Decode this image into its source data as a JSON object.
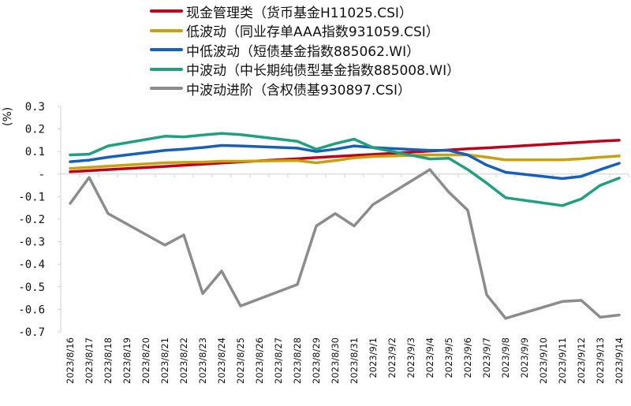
{
  "chart_data": {
    "type": "line",
    "title": "",
    "xlabel": "",
    "ylabel": "(%)",
    "ylim": [
      -0.7,
      0.3
    ],
    "yticks": [
      0.3,
      0.2,
      0.1,
      0,
      -0.1,
      -0.2,
      -0.3,
      -0.4,
      -0.5,
      -0.6,
      -0.7
    ],
    "ytick_labels": [
      "0.3",
      "0.2",
      "0.1",
      "-",
      "-0.1",
      "-0.2",
      "-0.3",
      "-0.4",
      "-0.5",
      "-0.6",
      "-0.7"
    ],
    "grid": false,
    "legend_position": "top",
    "categories": [
      "2023/8/16",
      "2023/8/17",
      "2023/8/18",
      "2023/8/19",
      "2023/8/20",
      "2023/8/21",
      "2023/8/22",
      "2023/8/23",
      "2023/8/24",
      "2023/8/25",
      "2023/8/26",
      "2023/8/27",
      "2023/8/28",
      "2023/8/29",
      "2023/8/30",
      "2023/8/31",
      "2023/9/1",
      "2023/9/2",
      "2023/9/3",
      "2023/9/4",
      "2023/9/5",
      "2023/9/6",
      "2023/9/7",
      "2023/9/8",
      "2023/9/9",
      "2023/9/10",
      "2023/9/11",
      "2023/9/12",
      "2023/9/13",
      "2023/9/14"
    ],
    "series": [
      {
        "name": "现金管理类（货币基金H11025.CSI）",
        "color": "#C0001A",
        "values": [
          0.01,
          0.015,
          0.02,
          null,
          null,
          0.034,
          0.039,
          0.044,
          0.049,
          0.054,
          null,
          null,
          0.068,
          0.073,
          0.078,
          0.083,
          0.087,
          null,
          null,
          0.102,
          0.107,
          0.112,
          0.116,
          0.121,
          null,
          null,
          0.136,
          0.141,
          0.146,
          0.15
        ]
      },
      {
        "name": "低波动（同业存单AAA指数931059.CSI）",
        "color": "#C9A00E",
        "values": [
          0.025,
          0.03,
          0.035,
          null,
          null,
          0.05,
          0.052,
          0.053,
          0.057,
          0.057,
          null,
          null,
          0.06,
          0.05,
          0.06,
          0.072,
          0.078,
          null,
          null,
          0.085,
          0.085,
          0.085,
          0.075,
          0.063,
          null,
          null,
          0.063,
          0.068,
          0.075,
          0.08
        ]
      },
      {
        "name": "中低波动（短债基金指数885062.WI）",
        "color": "#1560BD",
        "values": [
          0.055,
          0.062,
          0.075,
          null,
          null,
          0.105,
          0.11,
          0.118,
          0.127,
          0.125,
          null,
          null,
          0.115,
          0.1,
          0.11,
          0.125,
          0.118,
          null,
          null,
          0.105,
          0.105,
          0.085,
          0.04,
          0.008,
          null,
          null,
          -0.02,
          -0.01,
          0.02,
          0.048
        ]
      },
      {
        "name": "中波动（中长期纯债型基金指数885008.WI）",
        "color": "#1FA07E",
        "values": [
          0.085,
          0.088,
          0.125,
          null,
          null,
          0.168,
          0.165,
          0.173,
          0.18,
          0.175,
          null,
          null,
          0.145,
          0.11,
          0.135,
          0.155,
          0.117,
          null,
          null,
          0.067,
          0.07,
          0.02,
          -0.04,
          -0.105,
          null,
          null,
          -0.14,
          -0.11,
          -0.05,
          -0.018
        ]
      },
      {
        "name": "中波动进阶（含权债基930897.CSI）",
        "color": "#8C8C8C",
        "values": [
          -0.13,
          -0.015,
          -0.175,
          null,
          null,
          -0.315,
          -0.27,
          -0.53,
          -0.43,
          -0.585,
          null,
          null,
          -0.49,
          -0.23,
          -0.175,
          -0.23,
          -0.135,
          null,
          null,
          0.02,
          -0.08,
          -0.16,
          -0.535,
          -0.64,
          null,
          null,
          -0.565,
          -0.56,
          -0.635,
          -0.625
        ]
      }
    ]
  }
}
